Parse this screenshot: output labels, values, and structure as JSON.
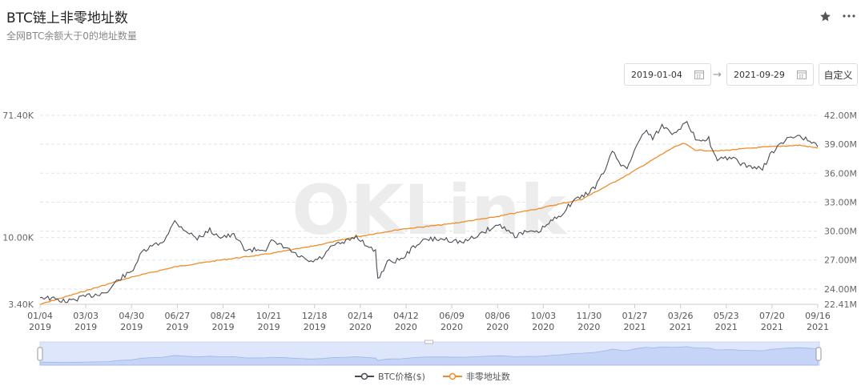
{
  "header": {
    "title": "BTC链上非零地址数",
    "subtitle": "全网BTC余额大于0的地址数量",
    "star_icon": "star-icon",
    "more_icon": "more-icon"
  },
  "date_range": {
    "start": "2019-01-04",
    "end": "2021-09-29",
    "arrow": "→",
    "custom_label": "自定义"
  },
  "watermark": "OKLink",
  "legend": {
    "price": "BTC价格($)",
    "addresses": "非零地址数"
  },
  "colors": {
    "price": "#4a4a55",
    "addresses": "#f08c2a",
    "grid": "#e3e3e3",
    "navigator": "#dde6fb"
  },
  "chart_data": {
    "type": "line",
    "x_ticks": [
      [
        "01/04",
        "2019"
      ],
      [
        "03/03",
        "2019"
      ],
      [
        "04/30",
        "2019"
      ],
      [
        "06/27",
        "2019"
      ],
      [
        "08/24",
        "2019"
      ],
      [
        "10/21",
        "2019"
      ],
      [
        "12/18",
        "2019"
      ],
      [
        "02/14",
        "2020"
      ],
      [
        "04/12",
        "2020"
      ],
      [
        "06/09",
        "2020"
      ],
      [
        "08/06",
        "2020"
      ],
      [
        "10/03",
        "2020"
      ],
      [
        "11/30",
        "2020"
      ],
      [
        "01/27",
        "2021"
      ],
      [
        "03/26",
        "2021"
      ],
      [
        "05/23",
        "2021"
      ],
      [
        "07/20",
        "2021"
      ],
      [
        "09/16",
        "2021"
      ]
    ],
    "y_left": {
      "label": "BTC价格($)",
      "scale": "log",
      "ticks": [
        "71.40K",
        "10.00K",
        "3.40K"
      ],
      "range": [
        3400,
        71400
      ]
    },
    "y_right": {
      "label": "非零地址数",
      "ticks": [
        "42.00M",
        "39.00M",
        "36.00M",
        "33.00M",
        "30.00M",
        "27.00M",
        "24.00M",
        "22.41M"
      ],
      "range": [
        22.41,
        42.0
      ]
    },
    "series": [
      {
        "name": "BTC价格($)",
        "x": [
          "2019-01-04",
          "2019-02-08",
          "2019-03-03",
          "2019-04-01",
          "2019-04-15",
          "2019-05-01",
          "2019-05-15",
          "2019-05-28",
          "2019-06-10",
          "2019-06-26",
          "2019-07-10",
          "2019-07-25",
          "2019-08-10",
          "2019-08-24",
          "2019-09-10",
          "2019-09-26",
          "2019-10-21",
          "2019-10-28",
          "2019-11-15",
          "2019-12-01",
          "2019-12-18",
          "2020-01-01",
          "2020-01-15",
          "2020-02-01",
          "2020-02-14",
          "2020-02-28",
          "2020-03-10",
          "2020-03-13",
          "2020-03-25",
          "2020-04-12",
          "2020-04-30",
          "2020-05-15",
          "2020-06-09",
          "2020-07-01",
          "2020-07-27",
          "2020-08-06",
          "2020-08-17",
          "2020-09-05",
          "2020-09-20",
          "2020-10-03",
          "2020-10-21",
          "2020-11-05",
          "2020-11-20",
          "2020-11-30",
          "2020-12-17",
          "2021-01-02",
          "2021-01-08",
          "2021-01-22",
          "2021-01-27",
          "2021-02-08",
          "2021-02-21",
          "2021-03-01",
          "2021-03-13",
          "2021-03-26",
          "2021-04-14",
          "2021-04-25",
          "2021-05-12",
          "2021-05-19",
          "2021-05-23",
          "2021-06-10",
          "2021-06-22",
          "2021-07-20",
          "2021-08-01",
          "2021-08-23",
          "2021-09-06",
          "2021-09-16",
          "2021-09-29"
        ],
        "values": [
          3850,
          3550,
          3850,
          4150,
          5100,
          5700,
          7800,
          8700,
          9200,
          12900,
          11200,
          9800,
          11200,
          10100,
          10300,
          8100,
          8300,
          9300,
          8500,
          7400,
          6700,
          7200,
          8700,
          9300,
          10200,
          8800,
          7900,
          5100,
          6700,
          7000,
          8800,
          9700,
          9700,
          9200,
          10900,
          11700,
          12200,
          10300,
          10900,
          10700,
          12800,
          14800,
          18300,
          19200,
          22500,
          32000,
          40500,
          31000,
          30500,
          44000,
          57000,
          49000,
          60500,
          54000,
          63000,
          49000,
          49000,
          37500,
          34500,
          36500,
          32500,
          30000,
          39500,
          49500,
          52000,
          47500,
          43000
        ]
      },
      {
        "name": "非零地址数",
        "x": [
          "2019-01-04",
          "2019-03-03",
          "2019-04-30",
          "2019-06-27",
          "2019-08-24",
          "2019-10-21",
          "2019-12-18",
          "2020-02-14",
          "2020-04-12",
          "2020-06-09",
          "2020-08-06",
          "2020-10-03",
          "2020-11-30",
          "2021-01-27",
          "2021-03-26",
          "2021-04-10",
          "2021-04-25",
          "2021-05-23",
          "2021-07-20",
          "2021-09-06",
          "2021-09-29"
        ],
        "values": [
          22.4,
          23.8,
          25.2,
          26.3,
          27.0,
          27.6,
          28.4,
          29.4,
          30.2,
          30.7,
          31.4,
          32.3,
          33.3,
          35.8,
          38.6,
          39.1,
          38.4,
          38.3,
          38.7,
          38.9,
          38.6
        ]
      }
    ]
  }
}
